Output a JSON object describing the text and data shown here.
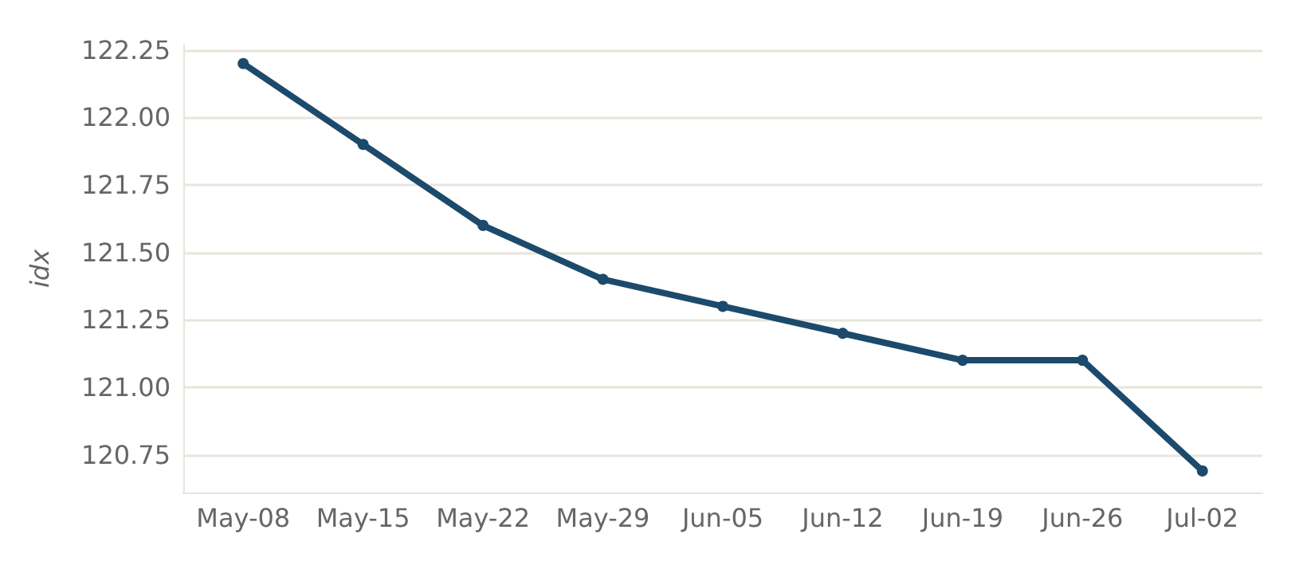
{
  "chart_data": {
    "type": "line",
    "ylabel": "idx",
    "categories": [
      "May-08",
      "May-15",
      "May-22",
      "May-29",
      "Jun-05",
      "Jun-12",
      "Jun-19",
      "Jun-26",
      "Jul-02"
    ],
    "series": [
      {
        "color": "#1c4a6c",
        "values": [
          122.2,
          121.9,
          121.6,
          121.4,
          121.3,
          121.2,
          121.1,
          121.1,
          120.69
        ]
      }
    ],
    "ylim": [
      120.61,
      122.27
    ],
    "yticks": [
      {
        "value": 120.75,
        "label": "120.75"
      },
      {
        "value": 121,
        "label": "121.00"
      },
      {
        "value": 121.25,
        "label": "121.25"
      },
      {
        "value": 121.5,
        "label": "121.50"
      },
      {
        "value": 121.75,
        "label": "121.75"
      },
      {
        "value": 122,
        "label": "122.00"
      },
      {
        "value": 122.25,
        "label": "122.25"
      }
    ],
    "grid": "y",
    "marker": "circle",
    "line_style": "solid"
  }
}
